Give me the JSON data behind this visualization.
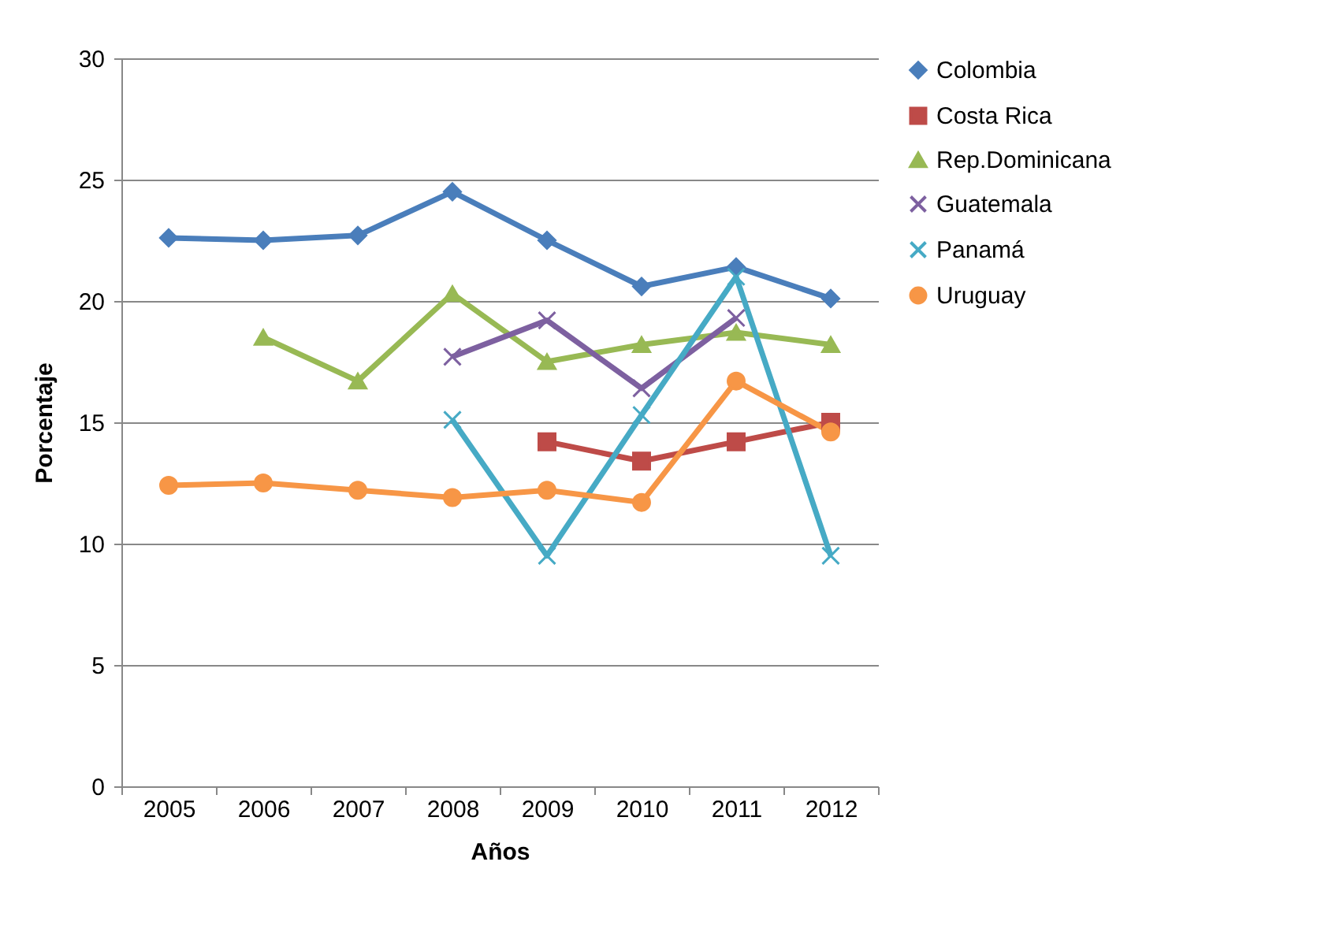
{
  "chart_data": {
    "type": "line",
    "xlabel": "Años",
    "ylabel": "Porcentaje",
    "categories": [
      "2005",
      "2006",
      "2007",
      "2008",
      "2009",
      "2010",
      "2011",
      "2012"
    ],
    "ylim": [
      0,
      30
    ],
    "yticks": [
      0,
      5,
      10,
      15,
      20,
      25,
      30
    ],
    "grid": "y",
    "legend": "right",
    "series": [
      {
        "name": "Colombia",
        "color": "#4a7ebb",
        "marker": "diamond",
        "values": [
          22.6,
          22.5,
          22.7,
          24.5,
          22.5,
          20.6,
          21.4,
          20.1
        ]
      },
      {
        "name": "Costa Rica",
        "color": "#be4b48",
        "marker": "square",
        "values": [
          null,
          null,
          null,
          null,
          14.2,
          13.4,
          14.2,
          15.0
        ]
      },
      {
        "name": "Rep.Dominicana",
        "color": "#98b954",
        "marker": "triangle",
        "values": [
          null,
          18.5,
          16.7,
          20.3,
          17.5,
          18.2,
          18.7,
          18.2
        ]
      },
      {
        "name": "Guatemala",
        "color": "#7d60a0",
        "marker": "cross",
        "values": [
          null,
          null,
          null,
          17.7,
          19.2,
          16.4,
          19.3,
          null
        ]
      },
      {
        "name": "Panamá",
        "color": "#46aac5",
        "marker": "cross",
        "values": [
          null,
          null,
          null,
          15.1,
          9.5,
          15.3,
          21.0,
          9.5
        ]
      },
      {
        "name": "Uruguay",
        "color": "#f79646",
        "marker": "circle",
        "values": [
          12.4,
          12.5,
          12.2,
          11.9,
          12.2,
          11.7,
          16.7,
          14.6
        ]
      }
    ]
  }
}
